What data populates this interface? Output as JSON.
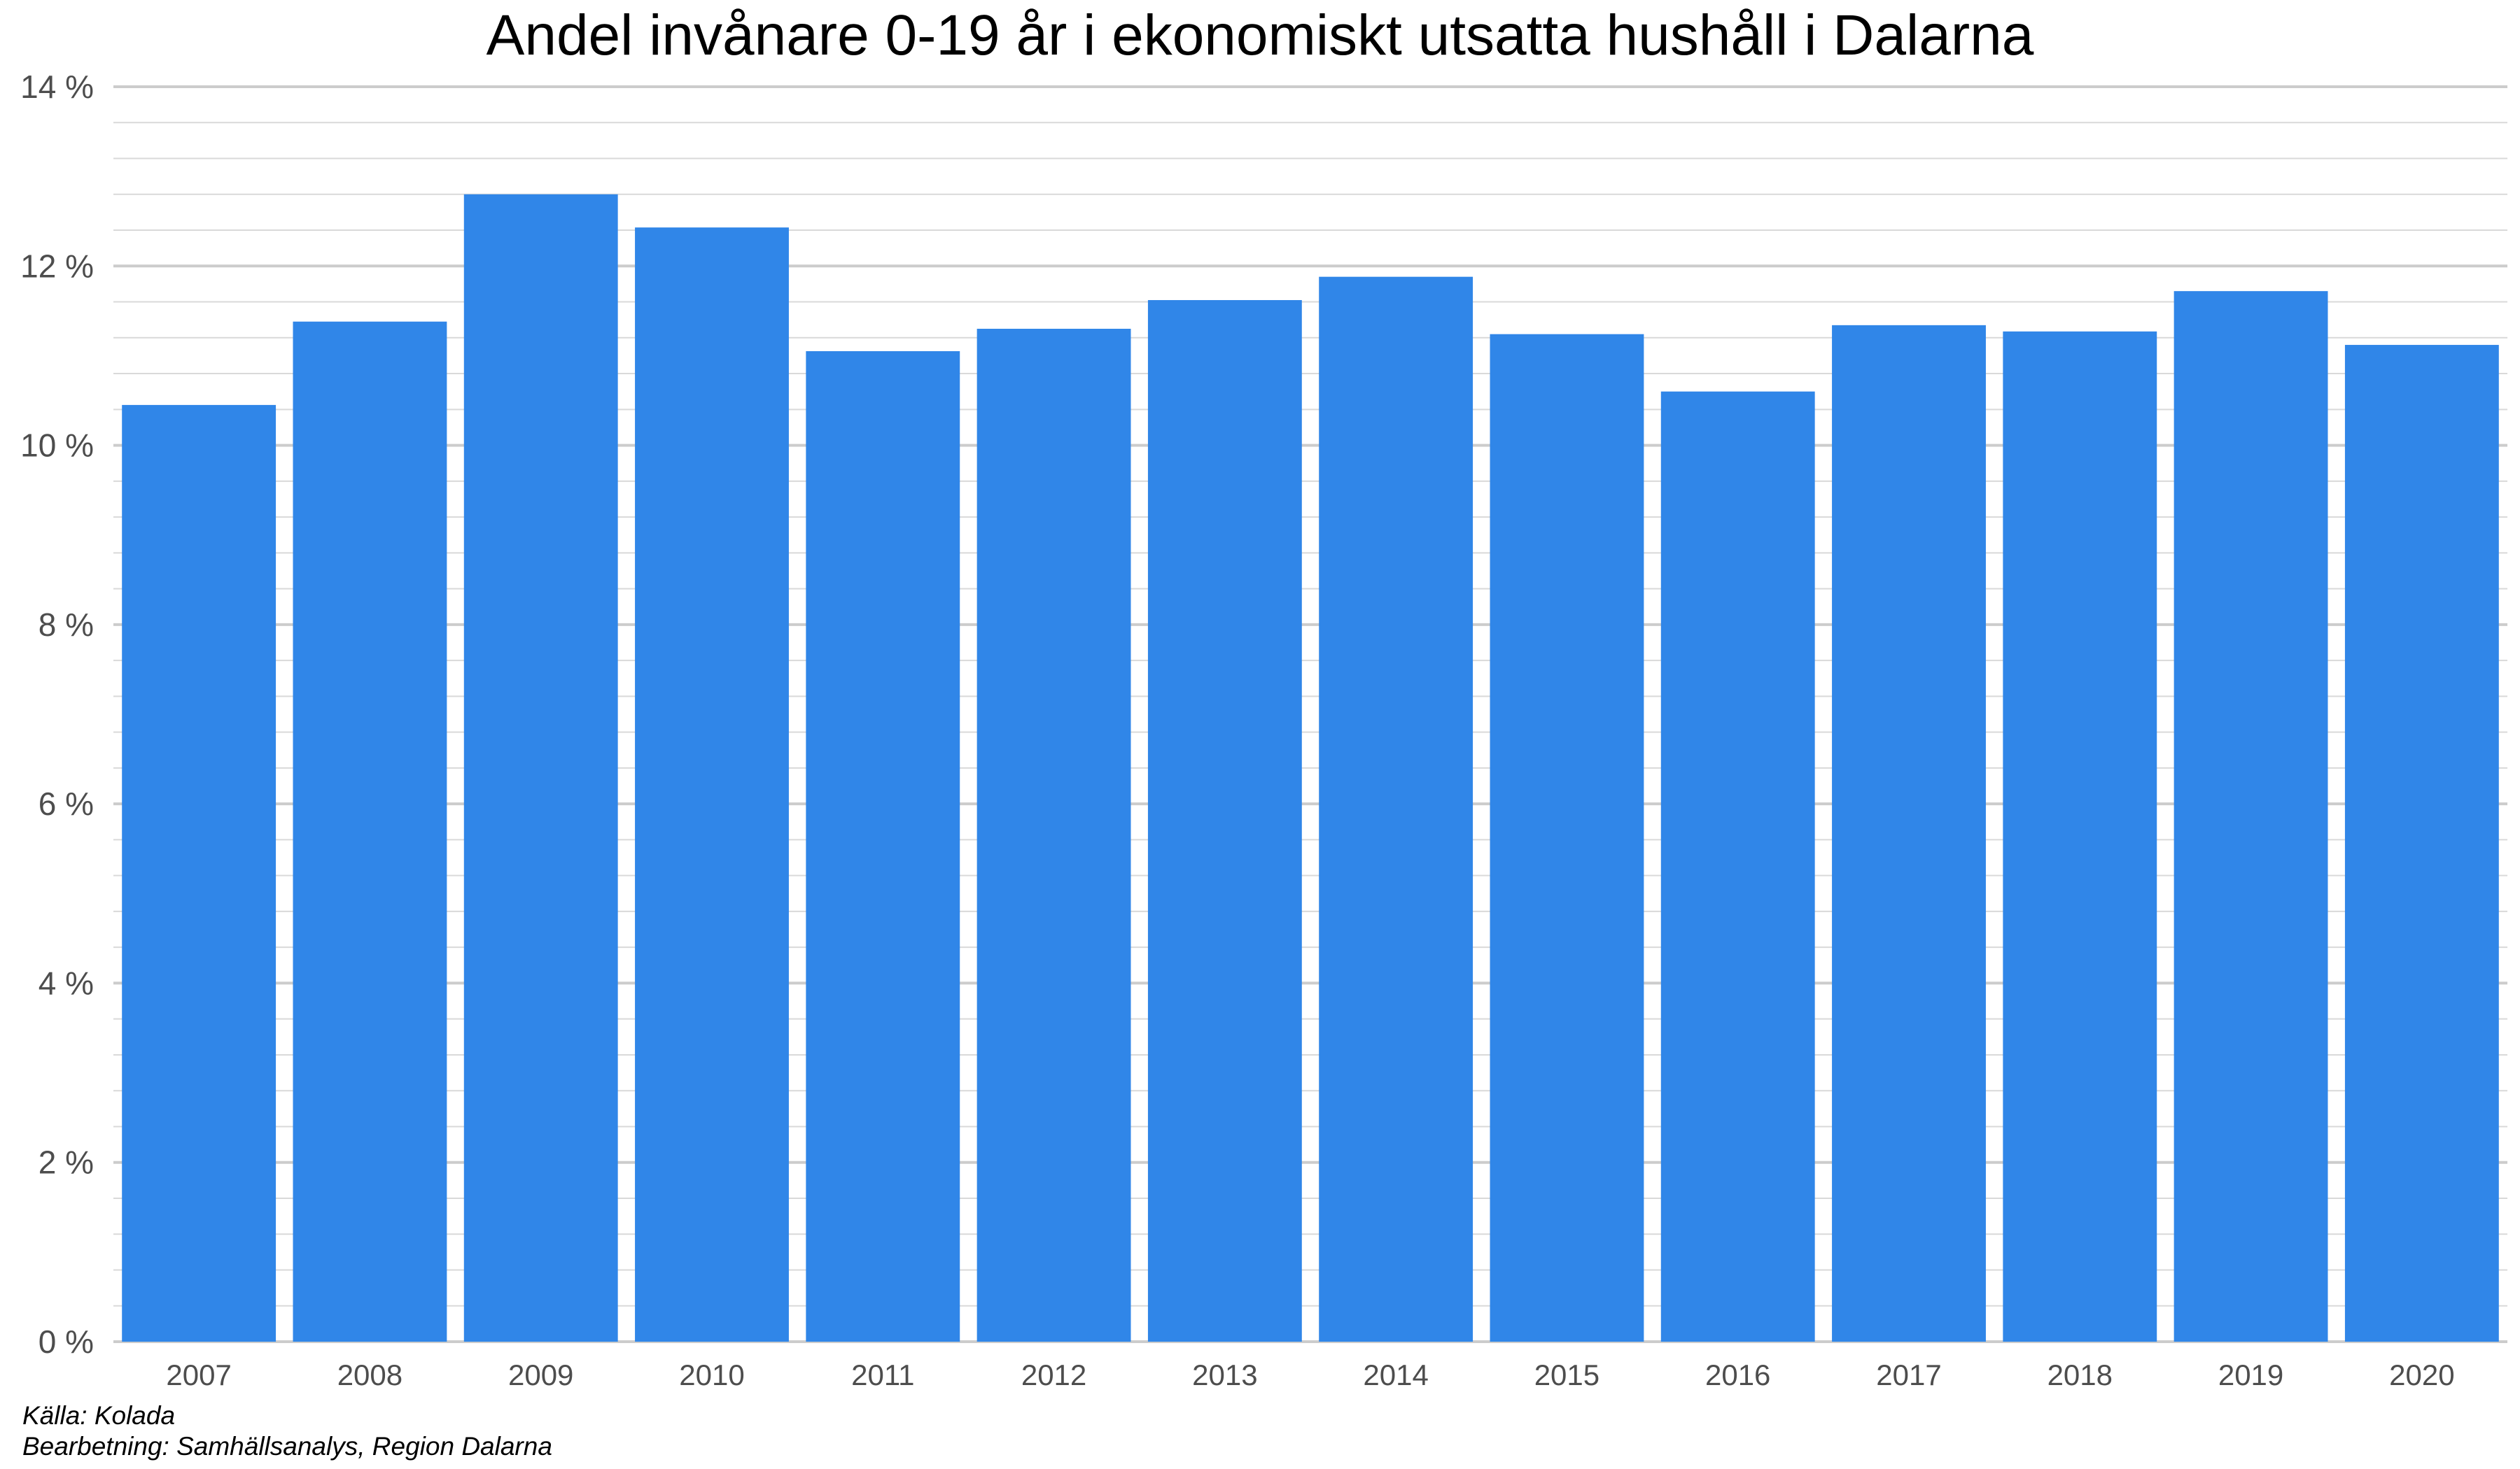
{
  "chart_data": {
    "type": "bar",
    "title": "Andel invånare 0-19 år i ekonomiskt utsatta hushåll i Dalarna",
    "xlabel": "",
    "ylabel": "",
    "categories": [
      "2007",
      "2008",
      "2009",
      "2010",
      "2011",
      "2012",
      "2013",
      "2014",
      "2015",
      "2016",
      "2017",
      "2018",
      "2019",
      "2020"
    ],
    "values": [
      10.45,
      11.38,
      12.8,
      12.43,
      11.05,
      11.3,
      11.62,
      11.88,
      11.24,
      10.6,
      11.34,
      11.27,
      11.72,
      11.12
    ],
    "ylim": [
      0,
      14
    ],
    "yticks": [
      0,
      2,
      4,
      6,
      8,
      10,
      12,
      14
    ],
    "ytick_labels": [
      "0 %",
      "2 %",
      "4 %",
      "6 %",
      "8 %",
      "10 %",
      "12 %",
      "14 %"
    ],
    "grid": true,
    "minor_grid_step": 0.4,
    "bar_color": "#3086e8",
    "legend": "none"
  },
  "captions": {
    "source": "Källa: Kolada",
    "processing": "Bearbetning: Samhällsanalys, Region Dalarna"
  },
  "colors": {
    "bar": "#3086e8",
    "grid_major": "#cccccc",
    "grid_minor": "#d9d9d9",
    "axis_text": "#4d4d4d"
  }
}
